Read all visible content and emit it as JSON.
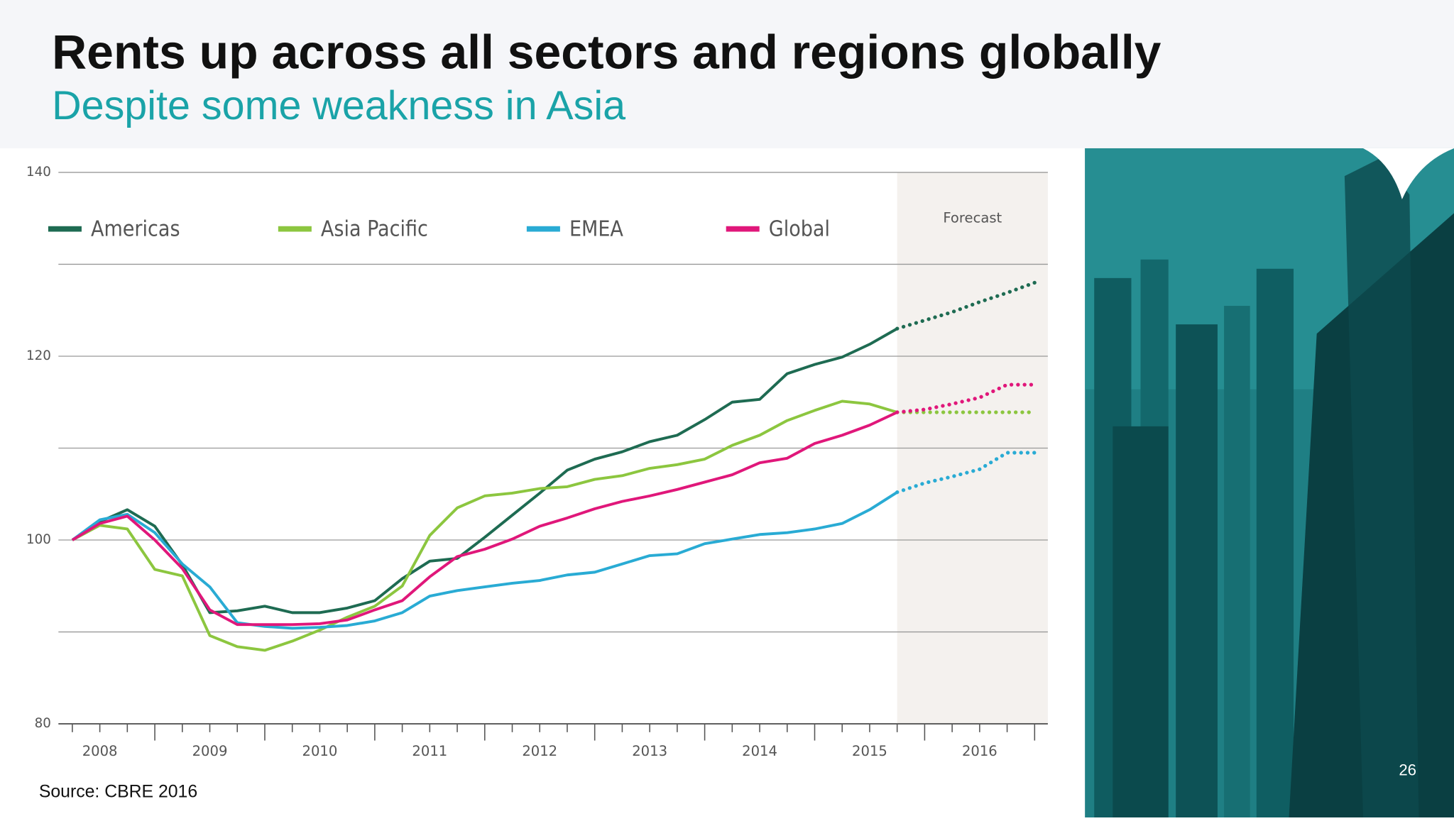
{
  "header": {
    "title": "Rents up across all sectors and regions globally",
    "subtitle": "Despite some weakness in Asia"
  },
  "chart_data": {
    "type": "line",
    "categories": [
      null,
      "2008",
      null,
      null,
      null,
      "2009",
      null,
      null,
      null,
      "2010",
      null,
      null,
      null,
      "2011",
      null,
      null,
      null,
      "2012",
      null,
      null,
      null,
      "2013",
      null,
      null,
      null,
      "2014",
      null,
      null,
      null,
      "2015",
      null,
      null,
      null,
      "2016",
      null,
      null
    ],
    "series": [
      {
        "name": "Americas",
        "color": "#1e6b52",
        "values": [
          100,
          102.0,
          103.3,
          101.5,
          97.3,
          92.1,
          92.3,
          92.8,
          92.1,
          92.1,
          92.6,
          93.4,
          95.8,
          97.7,
          98.0,
          100.3,
          102.7,
          105.1,
          107.6,
          108.8,
          109.6,
          110.7,
          111.4,
          113.1,
          115.0,
          115.3,
          118.1,
          119.1,
          119.9,
          121.3,
          123.0,
          123.9,
          124.8,
          125.9,
          126.9,
          128.0
        ]
      },
      {
        "name": "Asia Pacific",
        "color": "#8cc63f",
        "values": [
          100,
          101.6,
          101.2,
          96.8,
          96.1,
          89.6,
          88.4,
          88.0,
          89.0,
          90.2,
          91.6,
          92.8,
          95.0,
          100.5,
          103.5,
          104.8,
          105.1,
          105.6,
          105.8,
          106.6,
          107.0,
          107.8,
          108.2,
          108.8,
          110.3,
          111.4,
          113.0,
          114.1,
          115.1,
          114.8,
          113.9,
          113.9,
          113.9,
          113.9,
          113.9,
          113.9
        ]
      },
      {
        "name": "EMEA",
        "color": "#29abd4",
        "values": [
          100,
          102.2,
          102.8,
          100.8,
          97.4,
          94.9,
          91.0,
          90.6,
          90.4,
          90.5,
          90.7,
          91.2,
          92.1,
          93.9,
          94.5,
          94.9,
          95.3,
          95.6,
          96.2,
          96.5,
          97.4,
          98.3,
          98.5,
          99.6,
          100.1,
          100.6,
          100.8,
          101.2,
          101.8,
          103.3,
          105.2,
          106.2,
          106.9,
          107.7,
          109.5,
          109.5
        ]
      },
      {
        "name": "Global",
        "color": "#e0177a",
        "values": [
          100,
          101.8,
          102.6,
          100.0,
          96.9,
          92.4,
          90.8,
          90.8,
          90.8,
          90.9,
          91.3,
          92.4,
          93.4,
          96.0,
          98.2,
          99.0,
          100.1,
          101.5,
          102.4,
          103.4,
          104.2,
          104.8,
          105.5,
          106.3,
          107.1,
          108.4,
          108.9,
          110.5,
          111.4,
          112.5,
          113.9,
          114.2,
          114.8,
          115.5,
          116.9,
          116.9
        ]
      }
    ],
    "ylim": [
      80,
      140
    ],
    "yticks": [
      80,
      {
        "value": 90,
        "label": null
      },
      100,
      {
        "value": 110,
        "label": null
      },
      120,
      {
        "value": 130,
        "label": null
      },
      140
    ],
    "grid": true,
    "legend": "top",
    "forecast": {
      "label": "Forecast",
      "start_index": 30
    },
    "source": "Source:  CBRE 2016"
  },
  "page_number": "26"
}
